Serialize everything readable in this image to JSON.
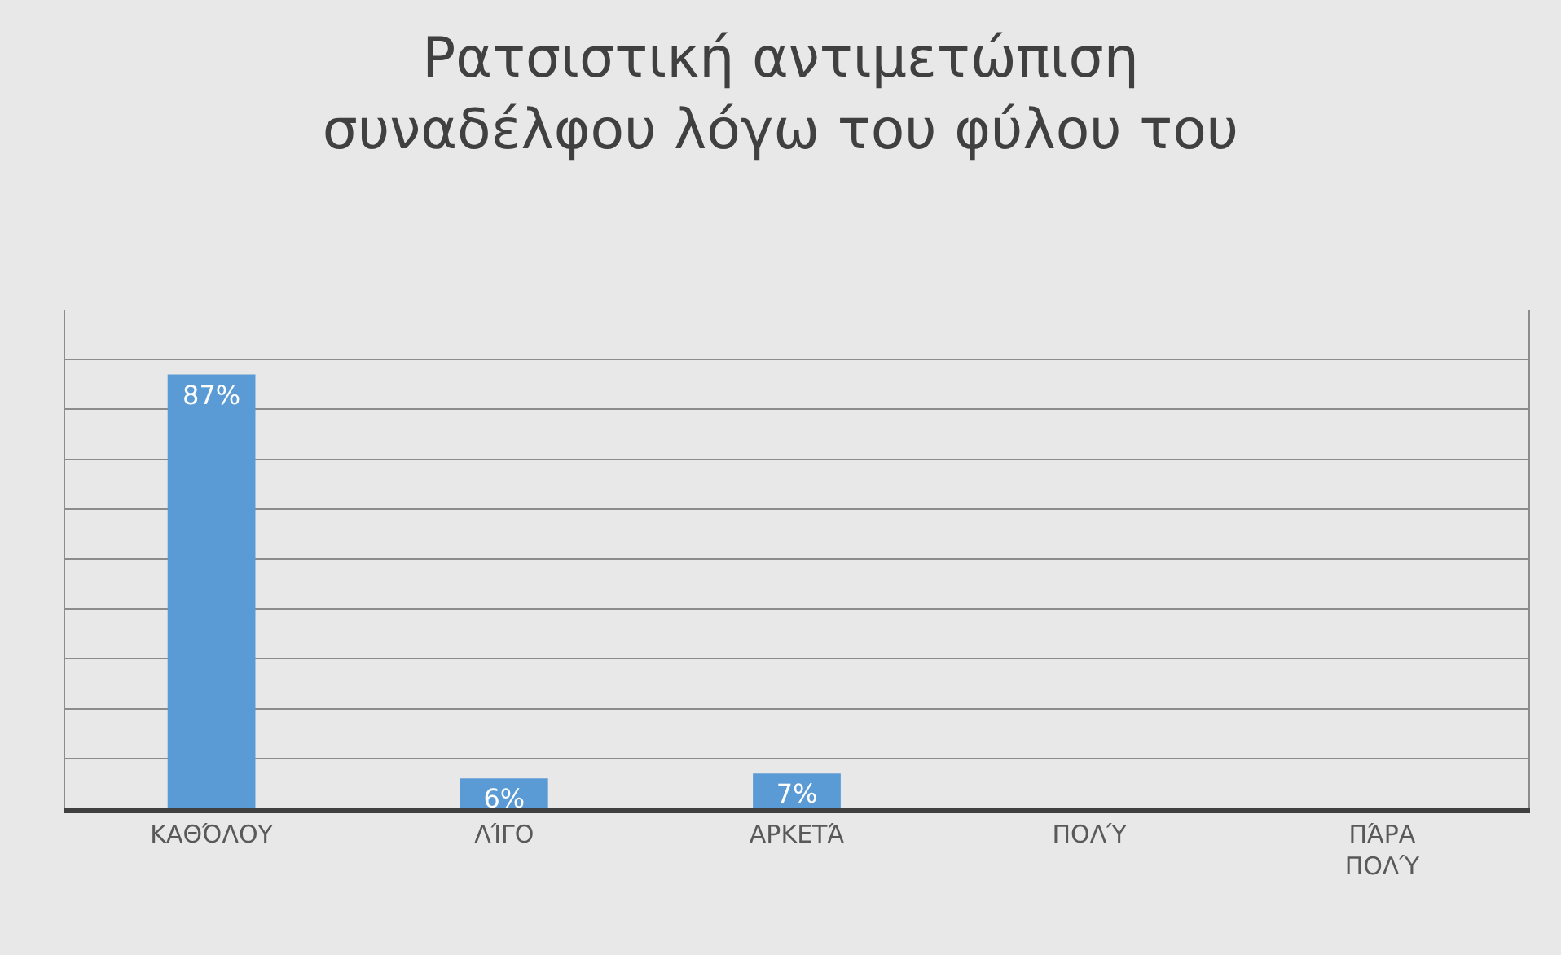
{
  "chart_data": {
    "type": "bar",
    "title": "Ρατσιστική αντιμετώπιση συναδέλφου λόγω του φύλου του",
    "categories": [
      "ΚΑΘΌΛΟΥ",
      "ΛΊΓΟ",
      "ΑΡΚΕΤΆ",
      "ΠΟΛΎ",
      "ΠΆΡΑ ΠΟΛΎ"
    ],
    "values": [
      87,
      6,
      7,
      0,
      0
    ],
    "value_labels": [
      "87%",
      "6%",
      "7%",
      null,
      null
    ],
    "color": "#5b9bd5",
    "ylim": [
      0,
      100
    ],
    "grid": "y",
    "tick_labels": "x",
    "legend": false
  }
}
